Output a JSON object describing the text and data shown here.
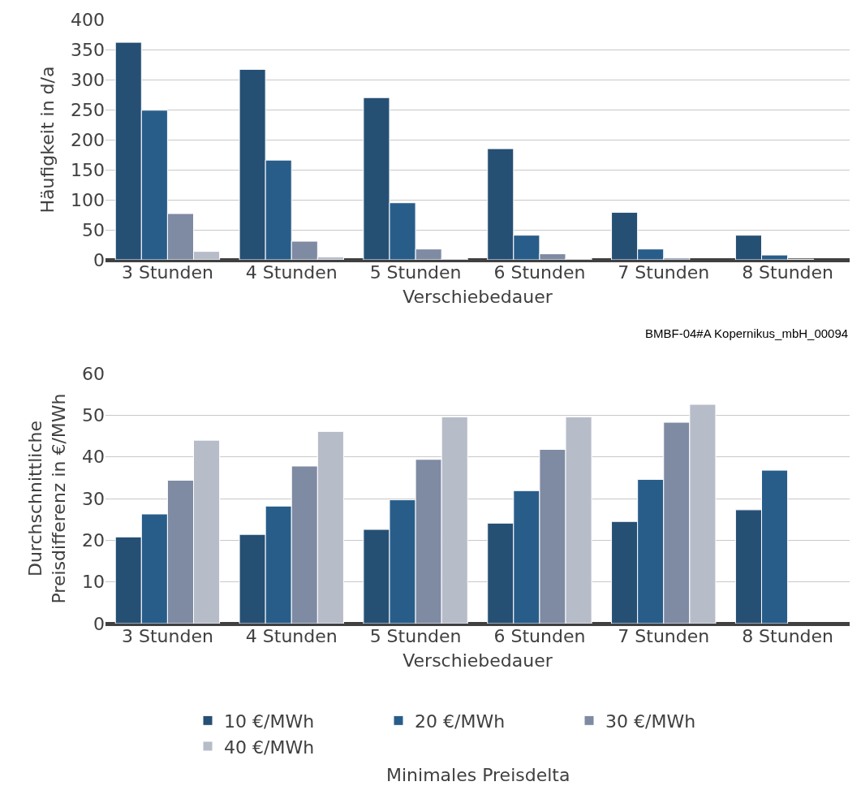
{
  "chart_data": [
    {
      "type": "bar",
      "xlabel": "Verschiebedauer",
      "ylabel": "Häufigkeit in d/a",
      "categories": [
        "3 Stunden",
        "4 Stunden",
        "5 Stunden",
        "6 Stunden",
        "7 Stunden",
        "8 Stunden"
      ],
      "series": [
        {
          "color": "#264f74",
          "values": [
            362,
            317,
            270,
            185,
            79,
            41
          ]
        },
        {
          "color": "#285d8a",
          "values": [
            249,
            166,
            95,
            41,
            18,
            8
          ]
        },
        {
          "color": "#7f8aa3",
          "values": [
            77,
            31,
            18,
            10,
            3,
            1
          ]
        },
        {
          "color": "#b7bcc9",
          "values": [
            14,
            5,
            2,
            2,
            null,
            null
          ]
        }
      ],
      "ylim": [
        0,
        400
      ],
      "yticks": [
        0,
        50,
        100,
        150,
        200,
        250,
        300,
        350,
        400
      ],
      "grid": "y",
      "legend": false,
      "annotations": [
        "BMBF-04#A Kopernikus_mbH_00094"
      ]
    },
    {
      "type": "bar",
      "xlabel": "Verschiebedauer",
      "ylabel": "Durchschnittliche\nPreisdifferenz in €/MWh",
      "legend_title": "Minimales Preisdelta",
      "categories": [
        "3 Stunden",
        "4 Stunden",
        "5 Stunden",
        "6 Stunden",
        "7 Stunden",
        "8 Stunden"
      ],
      "series": [
        {
          "name": "10 €/MWh",
          "color": "#264f74",
          "values": [
            20.8,
            21.4,
            22.6,
            24.1,
            24.5,
            27.3
          ]
        },
        {
          "name": "20 €/MWh",
          "color": "#285d8a",
          "values": [
            26.3,
            28.2,
            29.7,
            31.9,
            34.6,
            36.8
          ]
        },
        {
          "name": "30 €/MWh",
          "color": "#7f8aa3",
          "values": [
            34.4,
            37.8,
            39.4,
            41.8,
            48.3,
            null
          ]
        },
        {
          "name": "40 €/MWh",
          "color": "#b7bcc9",
          "values": [
            44.0,
            46.1,
            49.6,
            49.6,
            52.6,
            null
          ]
        }
      ],
      "ylim": [
        0,
        60
      ],
      "yticks": [
        0,
        10,
        20,
        30,
        40,
        50,
        60
      ],
      "grid": "y",
      "legend": "bottom"
    }
  ]
}
